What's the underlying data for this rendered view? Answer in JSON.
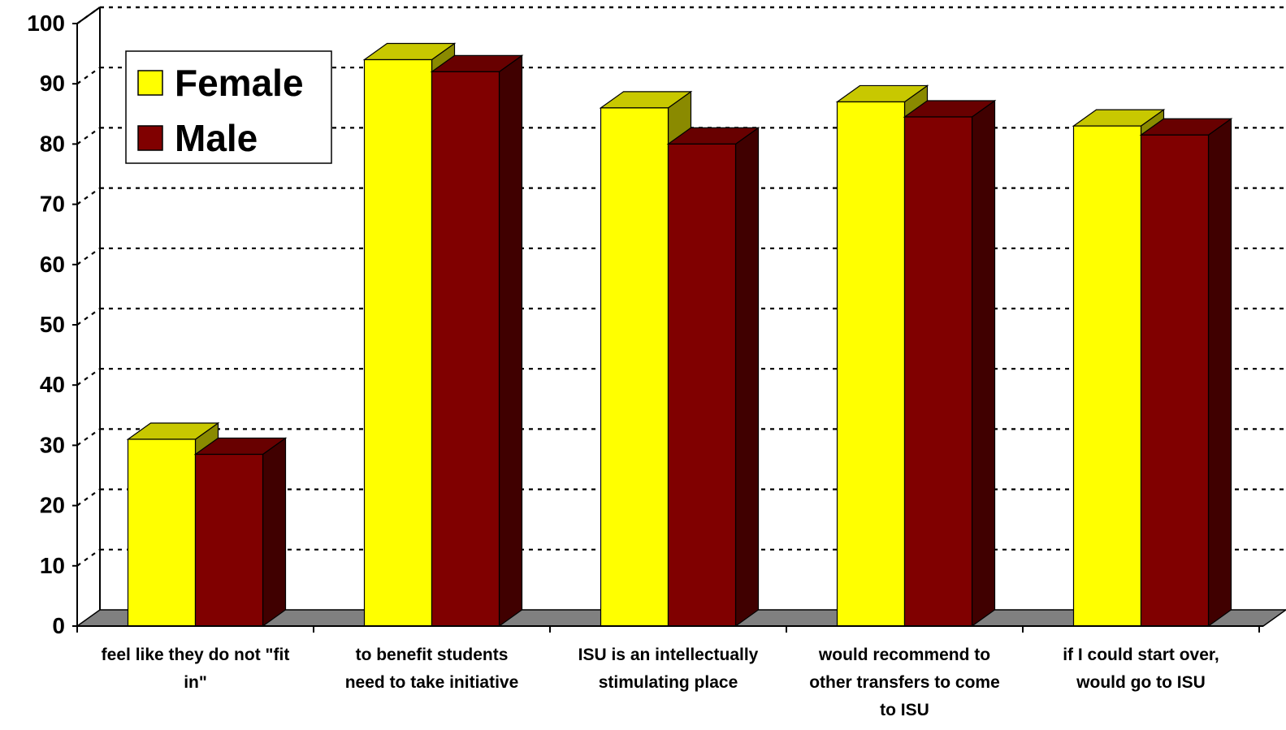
{
  "chart_data": {
    "type": "bar",
    "categories": [
      [
        "feel like they do not \"fit",
        "in\""
      ],
      [
        "to benefit students",
        "need to take initiative"
      ],
      [
        "ISU is an intellectually",
        "stimulating place"
      ],
      [
        "would recommend to",
        "other transfers to come",
        "to ISU"
      ],
      [
        "if I could start over,",
        "would go to ISU"
      ]
    ],
    "series": [
      {
        "name": "Female",
        "values": [
          31,
          94,
          86,
          87,
          83
        ],
        "color": "#FFFF00",
        "top_color": "#C8C800",
        "side_color": "#8A8A00"
      },
      {
        "name": "Male",
        "values": [
          28.5,
          92,
          80,
          84.5,
          81.5
        ],
        "color": "#800000",
        "top_color": "#680000",
        "side_color": "#400000"
      }
    ],
    "y_ticks": [
      "0",
      "10",
      "20",
      "30",
      "40",
      "50",
      "60",
      "70",
      "80",
      "90",
      "100"
    ],
    "ylim": [
      0,
      100
    ],
    "grid": true,
    "legend_position": "top-left",
    "floor_color": "#808080"
  }
}
